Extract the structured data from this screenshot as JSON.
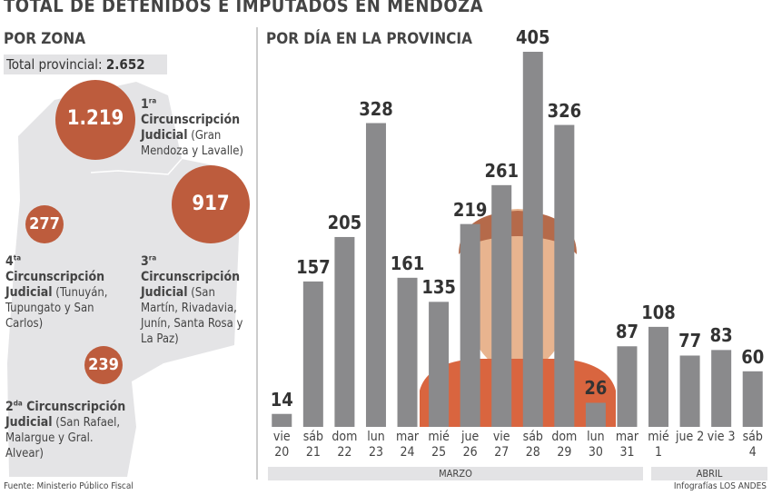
{
  "header": {
    "title": "TOTAL DE DETENIDOS E IMPUTADOS EN MENDOZA",
    "left_heading": "POR ZONA",
    "total_label": "Total provincial:",
    "total_value": "2.652",
    "right_heading": "POR DÍA EN LA PROVINCIA"
  },
  "zones": [
    {
      "value": "1.219",
      "ordinal": "1",
      "sup": "ra",
      "title": "Circunscripción Judicial",
      "detail": "(Gran Mendoza y Lavalle)"
    },
    {
      "value": "917",
      "ordinal": "3",
      "sup": "ra",
      "title": "Circunscripción Judicial",
      "detail": "(San Martín, Rivadavia, Junín, Santa Rosa y La Paz)"
    },
    {
      "value": "277",
      "ordinal": "4",
      "sup": "ta",
      "title": "Circunscripción Judicial",
      "detail": "(Tunuyán, Tupungato y San Carlos)"
    },
    {
      "value": "239",
      "ordinal": "2",
      "sup": "da",
      "title": "Circunscripción Judicial",
      "detail": "(San Rafael, Malargue y Gral. Alvear)"
    }
  ],
  "chart_data": {
    "type": "bar",
    "categories": [
      "vie 20",
      "sáb 21",
      "dom 22",
      "lun 23",
      "mar 24",
      "mié 25",
      "jue 26",
      "vie 27",
      "sáb 28",
      "dom 29",
      "lun 30",
      "mar 31",
      "mié 1",
      "jue 2",
      "vie 3",
      "sáb 4"
    ],
    "values": [
      14,
      157,
      205,
      328,
      161,
      135,
      219,
      261,
      405,
      326,
      26,
      87,
      108,
      77,
      83,
      60
    ],
    "color": "#8a8a8c",
    "ylim": [
      0,
      405
    ],
    "groups": [
      "MARZO",
      "ABRIL"
    ]
  },
  "footer": {
    "source": "Fuente: Ministerio Público Fiscal",
    "credit": "Infografías LOS ANDES"
  }
}
